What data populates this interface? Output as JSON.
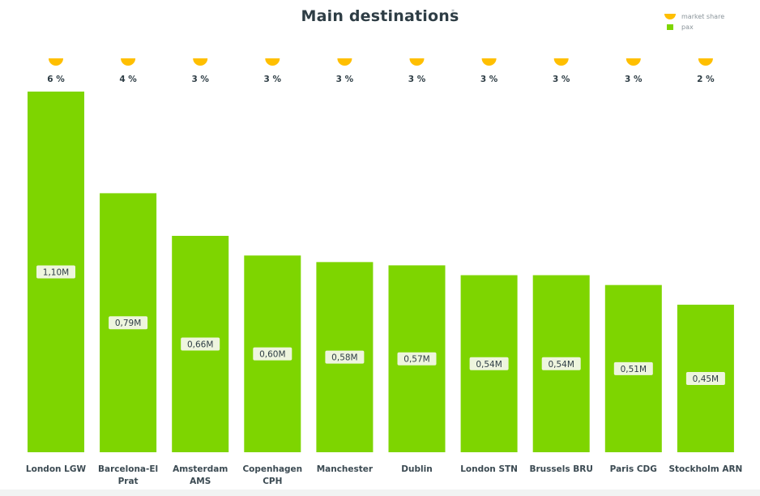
{
  "chart_data": {
    "type": "bar",
    "title": "Main destinations",
    "title_mark": "*",
    "categories": [
      [
        "London LGW"
      ],
      [
        "Barcelona-El",
        "Prat"
      ],
      [
        "Amsterdam",
        "AMS"
      ],
      [
        "Copenhagen",
        "CPH"
      ],
      [
        "Manchester"
      ],
      [
        "Dublin"
      ],
      [
        "London STN"
      ],
      [
        "Brussels BRU"
      ],
      [
        "Paris CDG"
      ],
      [
        "Stockholm ARN"
      ]
    ],
    "series": [
      {
        "name": "pax",
        "values": [
          1.1,
          0.79,
          0.66,
          0.6,
          0.58,
          0.57,
          0.54,
          0.54,
          0.51,
          0.45
        ],
        "labels": [
          "1,10M",
          "0,79M",
          "0,66M",
          "0,60M",
          "0,58M",
          "0,57M",
          "0,54M",
          "0,54M",
          "0,51M",
          "0,45M"
        ],
        "color": "#7ed500"
      },
      {
        "name": "market share",
        "values": [
          6,
          4,
          3,
          3,
          3,
          3,
          3,
          3,
          3,
          2
        ],
        "labels": [
          "6 %",
          "4 %",
          "3 %",
          "3 %",
          "3 %",
          "3 %",
          "3 %",
          "3 %",
          "3 %",
          "2 %"
        ],
        "color": "#ffbf00"
      }
    ],
    "ylim": [
      0,
      1.1
    ],
    "grid": false,
    "legend_position": "top-right",
    "value_label_bg": "#eef5de"
  }
}
